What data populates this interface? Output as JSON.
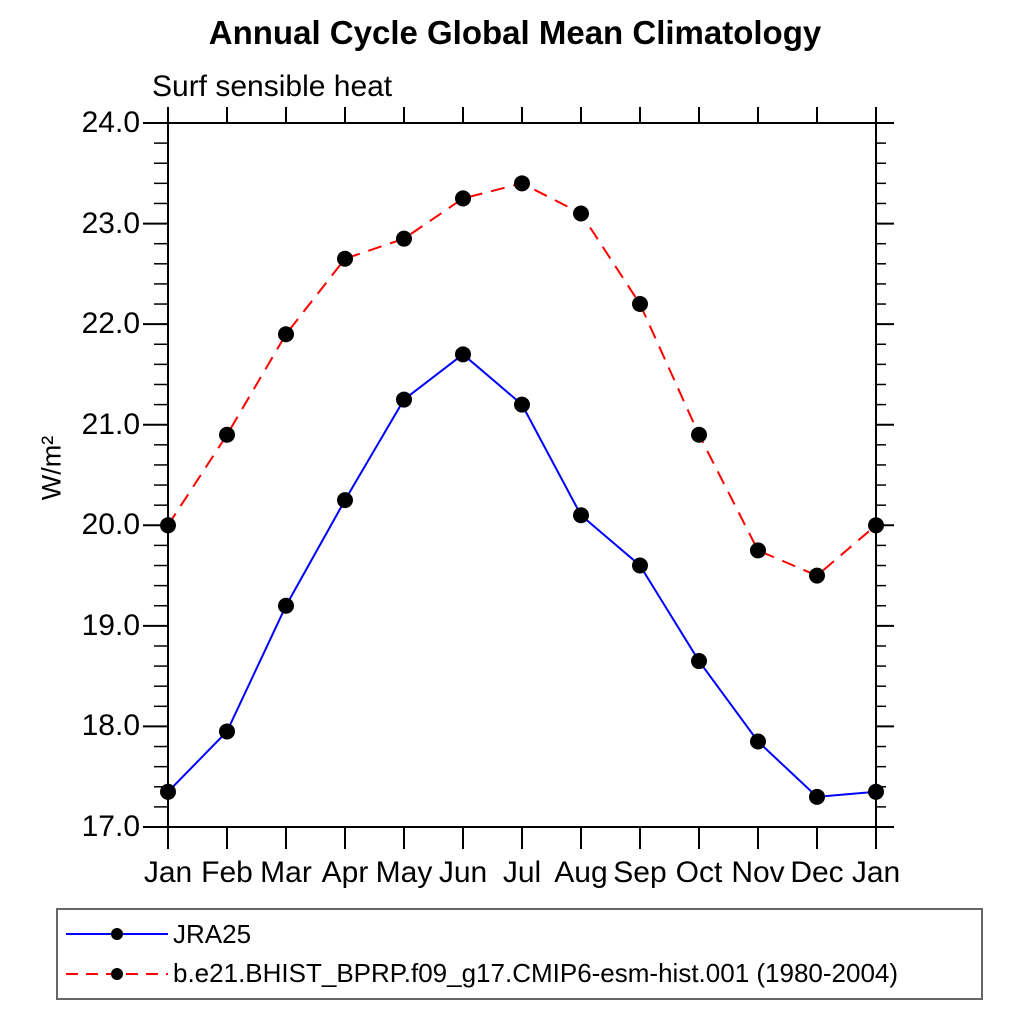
{
  "figure": {
    "background": "#ffffff",
    "frame_color": "#000000"
  },
  "chart_data": {
    "type": "line",
    "title": "Annual Cycle Global Mean Climatology",
    "subtitle": "Surf sensible heat",
    "ylabel": "W/m²",
    "ylim": [
      17.0,
      24.0
    ],
    "ytick_major": 1.0,
    "ytick_minor": 0.2,
    "ytick_labels": [
      "24.0",
      "23.0",
      "22.0",
      "21.0",
      "20.0",
      "19.0",
      "18.0",
      "17.0"
    ],
    "categories": [
      "Jan",
      "Feb",
      "Mar",
      "Apr",
      "May",
      "Jun",
      "Jul",
      "Aug",
      "Sep",
      "Oct",
      "Nov",
      "Dec",
      "Jan"
    ],
    "grid": "off",
    "legend_position": "bottom-left-box",
    "series": [
      {
        "name": "JRA25",
        "color": "#0000ff",
        "line_style": "solid",
        "marker": "filled-circle",
        "marker_color": "#000000",
        "values": [
          17.35,
          17.95,
          19.2,
          20.25,
          21.25,
          21.7,
          21.2,
          20.1,
          19.6,
          18.65,
          17.85,
          17.3,
          17.35
        ]
      },
      {
        "name": "b.e21.BHIST_BPRP.f09_g17.CMIP6-esm-hist.001 (1980-2004)",
        "color": "#ff0000",
        "line_style": "dashed",
        "marker": "filled-circle",
        "marker_color": "#000000",
        "values": [
          20.0,
          20.9,
          21.9,
          22.65,
          22.85,
          23.25,
          23.4,
          23.1,
          22.2,
          20.9,
          19.75,
          19.5,
          20.0
        ]
      }
    ]
  }
}
